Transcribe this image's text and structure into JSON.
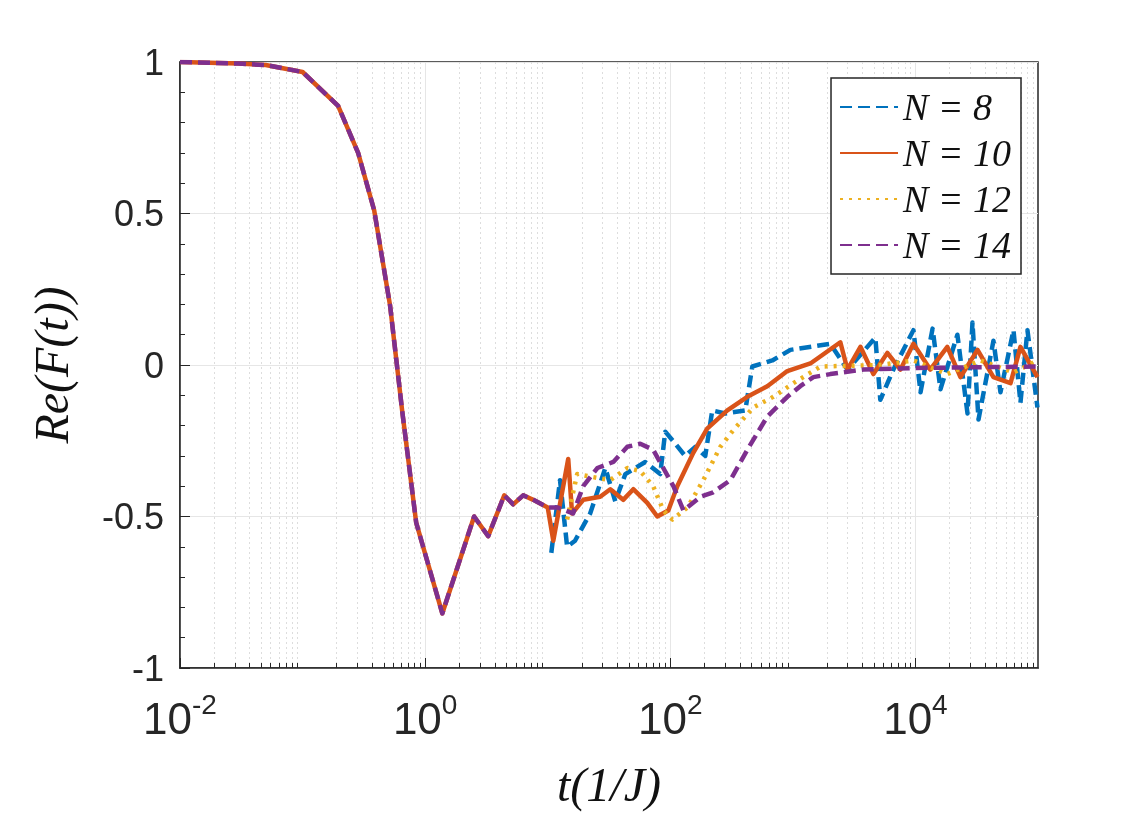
{
  "chart_data": {
    "type": "line",
    "xlabel": "t(1/J)",
    "ylabel": "Re(F(t))",
    "log": "x",
    "grid": true,
    "legend": "top right",
    "marker": "none",
    "xlim": [
      0.01,
      100000
    ],
    "xticks": [
      {
        "value": 0.01,
        "label": "10$^{-2}$"
      },
      {
        "value": 1,
        "label": "10$^{0}$"
      },
      {
        "value": 100,
        "label": "10$^{2}$"
      },
      {
        "value": 10000,
        "label": "10$^{4}$"
      }
    ],
    "ylim": [
      -1,
      1
    ],
    "yticks": [
      -1,
      -0.5,
      0,
      0.5,
      1
    ],
    "series": [
      {
        "name": "N = 8",
        "color": "#0072bd",
        "line_style": "dashed",
        "x": [
          10.7,
          12.6,
          14.4,
          16.7,
          22.2,
          29.5,
          35.6,
          43,
          62.5,
          82.8,
          91,
          110,
          132,
          160,
          193,
          220,
          281,
          409,
          467,
          680,
          955,
          2020,
          2790,
          4710,
          5170,
          6610,
          9630,
          11000,
          13800,
          16000,
          22000,
          26600,
          29200,
          32700,
          43300,
          49400,
          63100,
          71900,
          82000,
          99000
        ],
        "values": [
          -0.62,
          -0.38,
          -0.6,
          -0.58,
          -0.49,
          -0.34,
          -0.45,
          -0.36,
          -0.32,
          -0.36,
          -0.22,
          -0.26,
          -0.3,
          -0.27,
          -0.3,
          -0.15,
          -0.16,
          -0.15,
          -0.005,
          0.015,
          0.05,
          0.07,
          -0.015,
          0.09,
          -0.115,
          -0.015,
          0.115,
          -0.09,
          0.12,
          -0.08,
          0.1,
          -0.16,
          0.14,
          -0.18,
          0.08,
          -0.09,
          0.115,
          -0.125,
          0.115,
          -0.14
        ]
      },
      {
        "name": "N = 10",
        "color": "#d95319",
        "line_style": "solid",
        "x": [
          0.01,
          0.03,
          0.05,
          0.1,
          0.195,
          0.284,
          0.384,
          0.518,
          0.649,
          0.845,
          1.38,
          2.51,
          3.27,
          4.42,
          5.23,
          6.31,
          7.62,
          10,
          11.1,
          14.7,
          15.8,
          19.5,
          26.8,
          32.4,
          41.3,
          49.9,
          64.9,
          78.3,
          96.4,
          114,
          154,
          200,
          292,
          425,
          619,
          901,
          1390,
          2440,
          2790,
          3560,
          4540,
          5900,
          7550,
          9630,
          13200,
          18200,
          23300,
          32100,
          43300,
          59700,
          71900,
          99000
        ],
        "values": [
          1,
          0.995,
          0.99,
          0.967,
          0.855,
          0.7,
          0.51,
          0.195,
          -0.15,
          -0.52,
          -0.82,
          -0.5,
          -0.565,
          -0.43,
          -0.46,
          -0.43,
          -0.445,
          -0.47,
          -0.58,
          -0.31,
          -0.49,
          -0.445,
          -0.435,
          -0.41,
          -0.445,
          -0.41,
          -0.455,
          -0.5,
          -0.48,
          -0.4,
          -0.29,
          -0.21,
          -0.15,
          -0.105,
          -0.07,
          -0.02,
          0.005,
          0.075,
          -0.015,
          0.06,
          -0.03,
          0.04,
          -0.015,
          0.07,
          -0.015,
          0.06,
          -0.04,
          0.05,
          -0.04,
          -0.06,
          0.06,
          -0.04
        ]
      },
      {
        "name": "N = 12",
        "color": "#edb120",
        "line_style": "dotted",
        "x": [
          14.4,
          17.4,
          23.5,
          32.4,
          44.6,
          56.9,
          72.6,
          87.7,
          104,
          138,
          186,
          256,
          327,
          476,
          693,
          1010,
          1680,
          5170,
          9630,
          18200,
          34000,
          63100,
          99000
        ],
        "values": [
          -0.51,
          -0.36,
          -0.37,
          -0.38,
          -0.34,
          -0.35,
          -0.4,
          -0.48,
          -0.51,
          -0.47,
          -0.38,
          -0.27,
          -0.215,
          -0.14,
          -0.105,
          -0.06,
          -0.005,
          0,
          0.015,
          -0.03,
          0.015,
          -0.025,
          0.015
        ]
      },
      {
        "name": "N = 14",
        "color": "#7e2f8e",
        "line_style": "dashed",
        "x": [
          0.01,
          0.03,
          0.05,
          0.1,
          0.195,
          0.284,
          0.384,
          0.518,
          0.649,
          0.845,
          1.38,
          2.51,
          3.27,
          4.42,
          5.23,
          6.31,
          7.62,
          10,
          12,
          16.1,
          19.5,
          25.4,
          34.3,
          44.6,
          56.9,
          72.6,
          87.7,
          106,
          128,
          176,
          224,
          309,
          425,
          619,
          901,
          1150,
          1470,
          2020,
          3770,
          9630,
          99000
        ],
        "values": [
          1,
          0.995,
          0.99,
          0.967,
          0.855,
          0.7,
          0.51,
          0.195,
          -0.15,
          -0.52,
          -0.82,
          -0.5,
          -0.565,
          -0.43,
          -0.46,
          -0.43,
          -0.445,
          -0.47,
          -0.47,
          -0.49,
          -0.4,
          -0.34,
          -0.32,
          -0.27,
          -0.26,
          -0.28,
          -0.34,
          -0.4,
          -0.48,
          -0.435,
          -0.42,
          -0.38,
          -0.28,
          -0.17,
          -0.105,
          -0.07,
          -0.04,
          -0.03,
          -0.015,
          -0.01,
          -0.005
        ]
      }
    ]
  }
}
